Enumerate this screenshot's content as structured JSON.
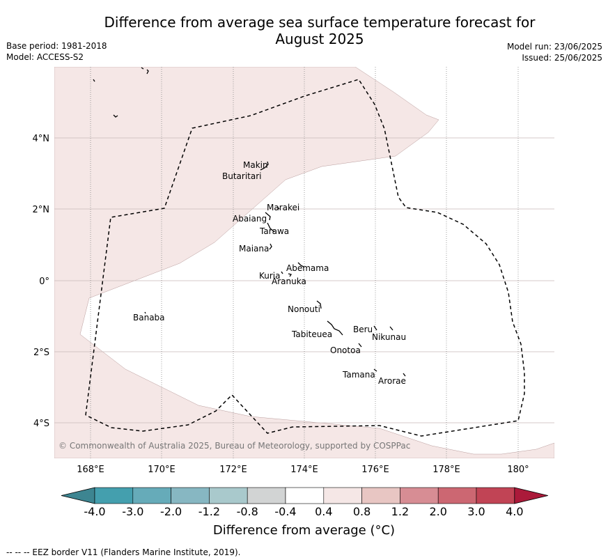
{
  "header": {
    "title_line1": "Difference from average sea surface temperature forecast for",
    "title_line2": "August 2025",
    "base_period": "Base period: 1981-2018",
    "model": "Model: ACCESS-S2",
    "model_run": "Model run: 23/06/2025",
    "issued": "Issued: 25/06/2025"
  },
  "map": {
    "lon_range": [
      167,
      181
    ],
    "lat_range": [
      -5,
      6
    ],
    "x_ticks": [
      "168°E",
      "170°E",
      "172°E",
      "174°E",
      "176°E",
      "178°E",
      "180°"
    ],
    "y_ticks": [
      "4°N",
      "2°N",
      "0°",
      "2°S",
      "4°S"
    ],
    "copyright": "© Commonwealth of Australia 2025, Bureau of Meteorology, supported by COSPPac",
    "places": {
      "makin": "Makin",
      "butaritari": "Butaritari",
      "marakei": "Marakei",
      "abaiang": "Abaiang",
      "tarawa": "Tarawa",
      "maiana": "Maiana",
      "abemama": "Abemama",
      "kuria": "Kuria",
      "aranuka": "Aranuka",
      "banaba": "Banaba",
      "nonouti": "Nonouti",
      "tabiteuea": "Tabiteuea",
      "beru": "Beru",
      "nikunau": "Nikunau",
      "onotoa": "Onotoa",
      "tamana": "Tamana",
      "arorae": "Arorae"
    },
    "colors": {
      "anomaly_0_4_to_0_8": "#f5e7e6",
      "background": "#ffffff"
    }
  },
  "colorbar": {
    "ticks": [
      "-4.0",
      "-3.0",
      "-2.0",
      "-1.2",
      "-0.8",
      "-0.4",
      "0.4",
      "0.8",
      "1.2",
      "2.0",
      "3.0",
      "4.0"
    ],
    "colors": [
      "#3d8591",
      "#449fae",
      "#66abb9",
      "#87b7c2",
      "#a9c9cc",
      "#d2d4d4",
      "#ffffff",
      "#f5e7e6",
      "#e8c6c3",
      "#d78d94",
      "#cc6772",
      "#c14455",
      "#ab1a3a"
    ],
    "label": "Difference from average (°C)"
  },
  "footer": {
    "legend_text": "--  --  -- EEZ border V11 (Flanders Marine Institute, 2019)."
  }
}
